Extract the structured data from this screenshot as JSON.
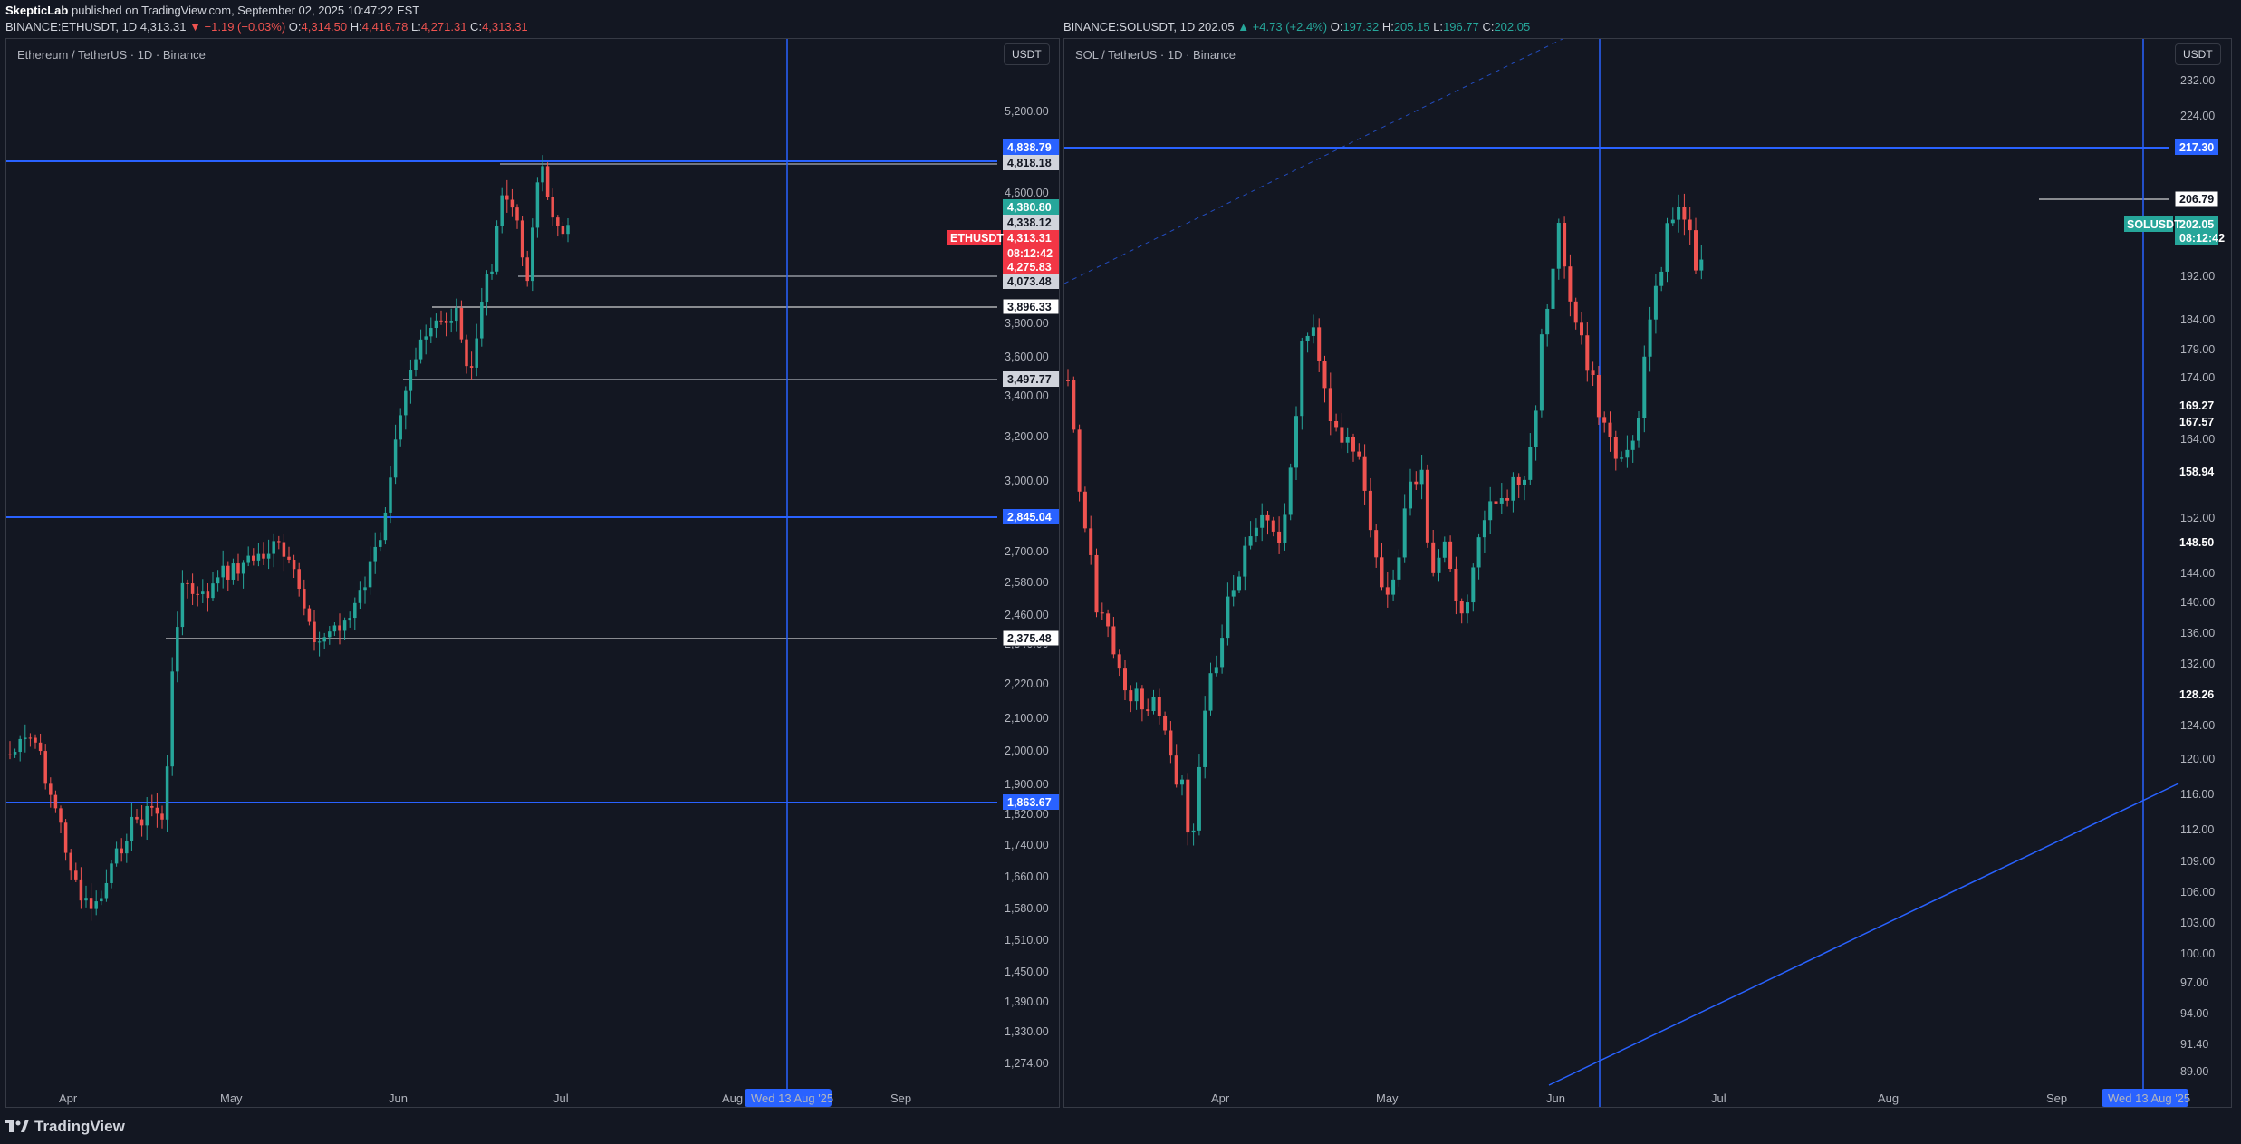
{
  "publisher": {
    "name": "SkepticLab",
    "text": "published on TradingView.com, September 02, 2025 10:47:22 EST"
  },
  "eth": {
    "symbol_line": "BINANCE:ETHUSDT, 1D",
    "last": "4,313.31",
    "change": "▼ −1.19 (−0.03%)",
    "o": "4,314.50",
    "h": "4,416.78",
    "l": "4,271.31",
    "c": "4,313.31",
    "title": "Ethereum / TetherUS · 1D · Binance",
    "currency_button": "USDT",
    "ticker_tag": "ETHUSDT",
    "countdown": "08:12:42",
    "axis_ticks": [
      "5,200.00",
      "4,600.00",
      "3,800.00",
      "3,600.00",
      "3,400.00",
      "3,200.00",
      "3,000.00",
      "2,700.00",
      "2,580.00",
      "2,460.00",
      "2,340.00",
      "2,220.00",
      "2,100.00",
      "2,000.00",
      "1,900.00",
      "1,820.00",
      "1,740.00",
      "1,660.00",
      "1,580.00",
      "1,510.00",
      "1,450.00",
      "1,390.00",
      "1,330.00",
      "1,274.00"
    ],
    "tags": [
      {
        "text": "4,838.79",
        "style": "blue"
      },
      {
        "text": "4,818.18",
        "style": "grey"
      },
      {
        "text": "4,380.80",
        "style": "green"
      },
      {
        "text": "4,338.12",
        "style": "grey"
      },
      {
        "text": "4,313.31",
        "style": "red"
      },
      {
        "text": "08:12:42",
        "style": "red"
      },
      {
        "text": "4,275.83",
        "style": "red"
      },
      {
        "text": "4,073.48",
        "style": "grey"
      },
      {
        "text": "3,896.33",
        "style": "white"
      },
      {
        "text": "3,497.77",
        "style": "grey"
      },
      {
        "text": "2,845.04",
        "style": "blue"
      },
      {
        "text": "2,375.48",
        "style": "white"
      },
      {
        "text": "1,863.67",
        "style": "blue"
      }
    ],
    "months": [
      "Apr",
      "May",
      "Jun",
      "Jul",
      "Aug",
      "Sep"
    ],
    "crosshair_date": "Wed 13 Aug '25"
  },
  "sol": {
    "symbol_line": "BINANCE:SOLUSDT, 1D",
    "last": "202.05",
    "change": "▲ +4.73 (+2.4%)",
    "o": "197.32",
    "h": "205.15",
    "l": "196.77",
    "c": "202.05",
    "title": "SOL / TetherUS · 1D · Binance",
    "currency_button": "USDT",
    "ticker_tag": "SOLUSDT",
    "countdown": "08:12:42",
    "axis_ticks": [
      "232.00",
      "224.00",
      "192.00",
      "184.00",
      "179.00",
      "174.00",
      "164.00",
      "152.00",
      "144.00",
      "140.00",
      "136.00",
      "132.00",
      "124.00",
      "120.00",
      "116.00",
      "112.00",
      "109.00",
      "106.00",
      "103.00",
      "100.00",
      "97.00",
      "94.00",
      "91.40",
      "89.00"
    ],
    "tags": [
      {
        "text": "217.30",
        "style": "blue"
      },
      {
        "text": "206.79",
        "style": "white"
      },
      {
        "text": "202.05",
        "style": "green"
      },
      {
        "text": "08:12:42",
        "style": "green"
      },
      {
        "text": "169.27",
        "style": "plain"
      },
      {
        "text": "167.57",
        "style": "plain"
      },
      {
        "text": "158.94",
        "style": "plain"
      },
      {
        "text": "148.50",
        "style": "plain"
      },
      {
        "text": "128.26",
        "style": "plain"
      }
    ],
    "months": [
      "Apr",
      "May",
      "Jun",
      "Jul",
      "Aug",
      "Sep"
    ],
    "crosshair_date": "Wed 13 Aug '25"
  },
  "footer": {
    "brand": "TradingView"
  },
  "colors": {
    "up": "#26a69a",
    "down": "#ef5350",
    "blue": "#2962ff",
    "bg": "#131722"
  }
}
